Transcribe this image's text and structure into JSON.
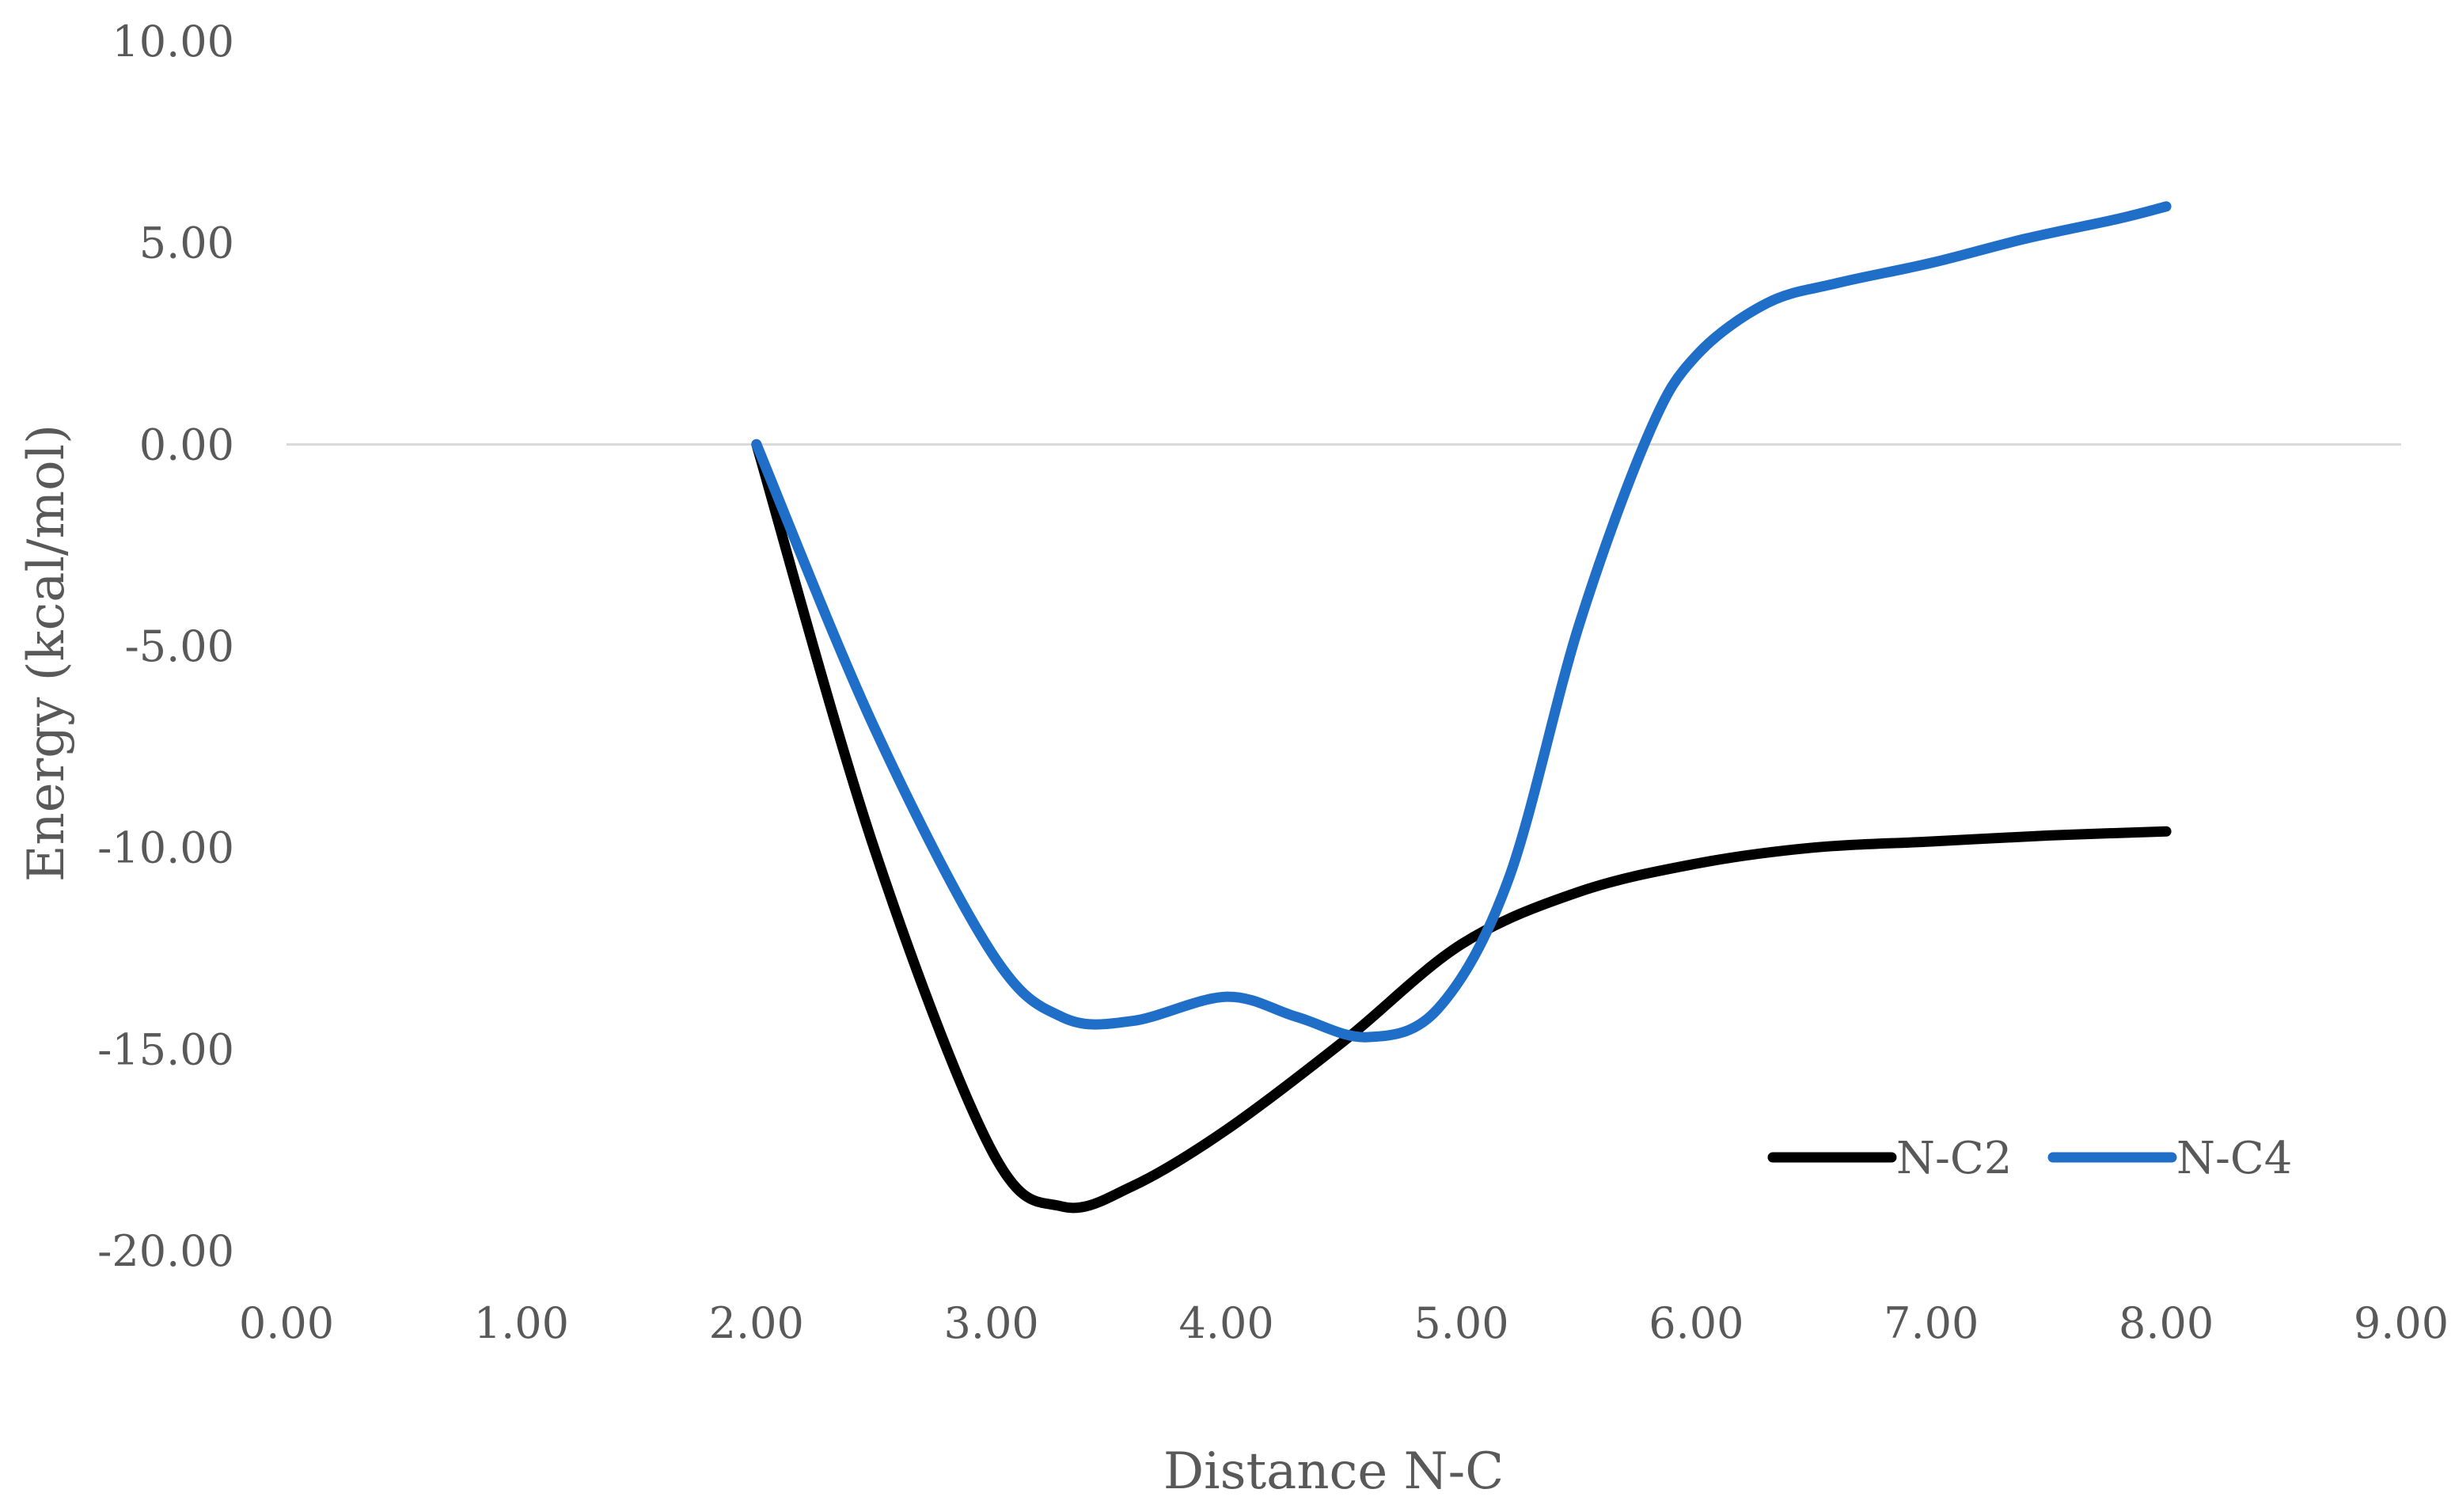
{
  "chart_data": {
    "type": "line",
    "title": "",
    "xlabel": "Distance N-C",
    "ylabel": "Energy (kcal/mol)",
    "xlim": [
      0,
      9
    ],
    "ylim": [
      -20,
      10
    ],
    "x_ticks": [
      "0.00",
      "1.00",
      "2.00",
      "3.00",
      "4.00",
      "5.00",
      "6.00",
      "7.00",
      "8.00",
      "9.00"
    ],
    "y_ticks": [
      "10.00",
      "5.00",
      "0.00",
      "-5.00",
      "-10.00",
      "-15.00",
      "-20.00"
    ],
    "grid": "zero-line only",
    "legend_position": "bottom-right",
    "series": [
      {
        "name": "N-C2",
        "color": "#000000",
        "x": [
          2.0,
          2.5,
          3.0,
          3.3,
          3.6,
          4.0,
          4.5,
          5.0,
          5.5,
          6.0,
          6.5,
          7.0,
          7.5,
          8.0
        ],
        "y": [
          0.0,
          -10.0,
          -17.5,
          -18.9,
          -18.4,
          -17.0,
          -14.8,
          -12.4,
          -11.1,
          -10.4,
          -10.0,
          -9.85,
          -9.7,
          -9.6
        ]
      },
      {
        "name": "N-C4",
        "color": "#1f6fc8",
        "x": [
          2.0,
          2.5,
          3.0,
          3.3,
          3.6,
          4.0,
          4.3,
          4.6,
          4.9,
          5.2,
          5.5,
          5.8,
          6.0,
          6.3,
          6.6,
          7.0,
          7.4,
          7.8,
          8.0
        ],
        "y": [
          0.0,
          -7.0,
          -12.6,
          -14.2,
          -14.3,
          -13.7,
          -14.2,
          -14.7,
          -14.0,
          -10.8,
          -4.5,
          0.3,
          2.2,
          3.5,
          4.0,
          4.5,
          5.1,
          5.6,
          5.9
        ]
      }
    ]
  }
}
